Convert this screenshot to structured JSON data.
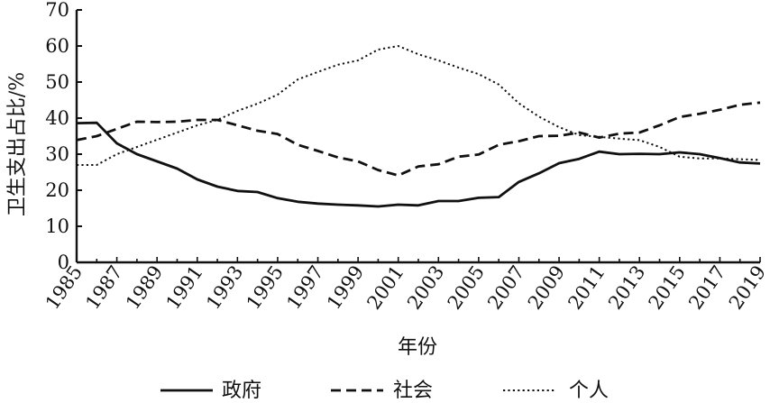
{
  "chart_data": {
    "type": "line",
    "xlabel": "年份",
    "ylabel": "卫生支出占比/%",
    "xlim": [
      1985,
      2019
    ],
    "ylim": [
      0,
      70
    ],
    "yticks": [
      0,
      10,
      20,
      30,
      40,
      50,
      60,
      70
    ],
    "xticks": [
      1985,
      1987,
      1989,
      1991,
      1993,
      1995,
      1997,
      1999,
      2001,
      2003,
      2005,
      2007,
      2009,
      2011,
      2013,
      2015,
      2017,
      2019
    ],
    "grid": false,
    "legend_position": "bottom",
    "x": [
      1985,
      1986,
      1987,
      1988,
      1989,
      1990,
      1991,
      1992,
      1993,
      1994,
      1995,
      1996,
      1997,
      1998,
      1999,
      2000,
      2001,
      2002,
      2003,
      2004,
      2005,
      2006,
      2007,
      2008,
      2009,
      2010,
      2011,
      2012,
      2013,
      2014,
      2015,
      2016,
      2017,
      2018,
      2019
    ],
    "series": [
      {
        "name": "政府",
        "style": "solid",
        "values": [
          38.6,
          38.7,
          33.0,
          30.0,
          28.0,
          26.0,
          23.0,
          21.0,
          19.8,
          19.5,
          17.8,
          16.8,
          16.3,
          16.0,
          15.8,
          15.5,
          16.0,
          15.8,
          17.0,
          17.0,
          17.9,
          18.1,
          22.3,
          24.7,
          27.5,
          28.7,
          30.7,
          30.0,
          30.1,
          30.0,
          30.5,
          30.0,
          28.9,
          27.7,
          27.4
        ]
      },
      {
        "name": "社会",
        "style": "dashed",
        "values": [
          33.9,
          35.0,
          37.0,
          39.0,
          38.9,
          39.0,
          39.5,
          39.5,
          38.0,
          36.5,
          35.6,
          32.6,
          30.9,
          29.1,
          28.0,
          25.6,
          24.1,
          26.6,
          27.2,
          29.3,
          29.9,
          32.6,
          33.6,
          35.0,
          35.1,
          36.0,
          34.6,
          35.7,
          36.0,
          38.0,
          40.3,
          41.2,
          42.3,
          43.7,
          44.3
        ]
      },
      {
        "name": "个人",
        "style": "dotted",
        "values": [
          27.0,
          27.0,
          30.0,
          32.0,
          34.0,
          36.0,
          38.0,
          39.5,
          42.0,
          44.0,
          46.5,
          50.7,
          52.8,
          54.8,
          56.0,
          59.0,
          60.0,
          57.7,
          56.0,
          54.0,
          52.2,
          49.3,
          44.1,
          40.4,
          37.5,
          35.3,
          34.8,
          34.3,
          33.9,
          32.0,
          29.3,
          28.8,
          28.8,
          28.6,
          28.4
        ]
      }
    ]
  }
}
